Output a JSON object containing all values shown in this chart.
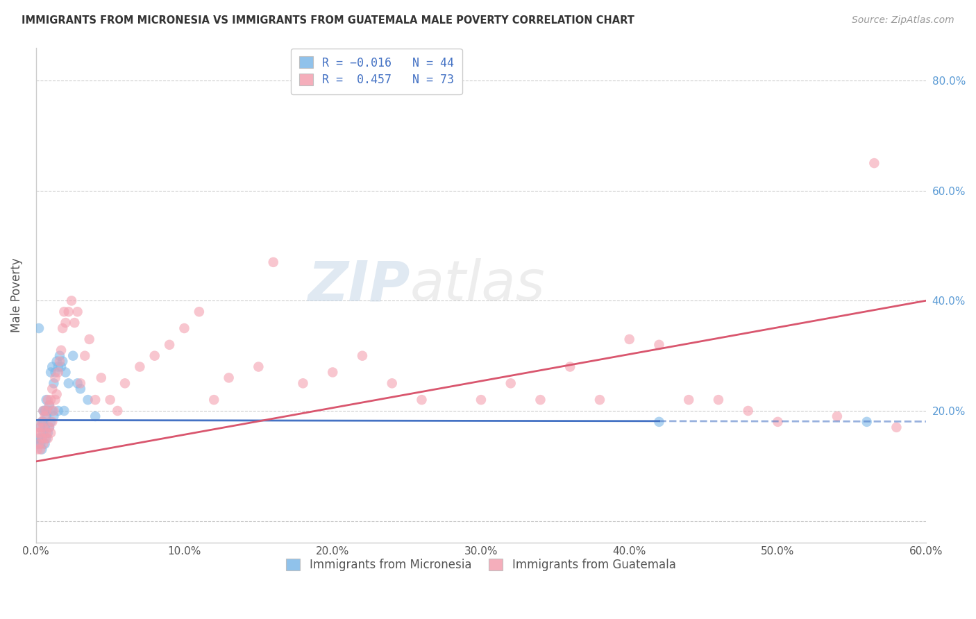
{
  "title": "IMMIGRANTS FROM MICRONESIA VS IMMIGRANTS FROM GUATEMALA MALE POVERTY CORRELATION CHART",
  "source": "Source: ZipAtlas.com",
  "ylabel_label": "Male Poverty",
  "xlim": [
    0.0,
    0.6
  ],
  "ylim": [
    -0.04,
    0.86
  ],
  "watermark": "ZIPatlas",
  "legend_r1": "R = -0.016",
  "legend_n1": "N = 44",
  "legend_r2": "R =  0.457",
  "legend_n2": "N = 73",
  "blue_color": "#7db8e8",
  "pink_color": "#f4a0b0",
  "line_blue": "#4472c4",
  "line_pink": "#d9566e",
  "blue_line_solid_end": 0.42,
  "blue_intercept": 0.183,
  "blue_slope": -0.004,
  "pink_intercept": 0.108,
  "pink_slope": 0.487,
  "micro_x": [
    0.001,
    0.002,
    0.002,
    0.003,
    0.003,
    0.004,
    0.004,
    0.004,
    0.005,
    0.005,
    0.005,
    0.006,
    0.006,
    0.006,
    0.007,
    0.007,
    0.007,
    0.008,
    0.008,
    0.009,
    0.009,
    0.01,
    0.01,
    0.011,
    0.011,
    0.012,
    0.012,
    0.013,
    0.014,
    0.015,
    0.015,
    0.016,
    0.017,
    0.018,
    0.019,
    0.02,
    0.022,
    0.025,
    0.028,
    0.03,
    0.035,
    0.04,
    0.42,
    0.56
  ],
  "micro_y": [
    0.14,
    0.35,
    0.15,
    0.14,
    0.17,
    0.15,
    0.18,
    0.13,
    0.16,
    0.18,
    0.2,
    0.14,
    0.17,
    0.2,
    0.15,
    0.19,
    0.22,
    0.16,
    0.2,
    0.17,
    0.21,
    0.18,
    0.27,
    0.2,
    0.28,
    0.19,
    0.25,
    0.27,
    0.29,
    0.2,
    0.28,
    0.3,
    0.28,
    0.29,
    0.2,
    0.27,
    0.25,
    0.3,
    0.25,
    0.24,
    0.22,
    0.19,
    0.18,
    0.18
  ],
  "guate_x": [
    0.001,
    0.001,
    0.002,
    0.002,
    0.003,
    0.003,
    0.004,
    0.004,
    0.005,
    0.005,
    0.005,
    0.006,
    0.006,
    0.007,
    0.007,
    0.008,
    0.008,
    0.009,
    0.009,
    0.01,
    0.01,
    0.011,
    0.011,
    0.012,
    0.013,
    0.013,
    0.014,
    0.015,
    0.016,
    0.017,
    0.018,
    0.019,
    0.02,
    0.022,
    0.024,
    0.026,
    0.028,
    0.03,
    0.033,
    0.036,
    0.04,
    0.044,
    0.05,
    0.055,
    0.06,
    0.07,
    0.08,
    0.09,
    0.1,
    0.11,
    0.12,
    0.13,
    0.15,
    0.16,
    0.18,
    0.2,
    0.22,
    0.24,
    0.26,
    0.3,
    0.32,
    0.34,
    0.36,
    0.38,
    0.4,
    0.42,
    0.44,
    0.46,
    0.48,
    0.5,
    0.54,
    0.565,
    0.58
  ],
  "guate_y": [
    0.13,
    0.16,
    0.14,
    0.17,
    0.13,
    0.16,
    0.15,
    0.18,
    0.14,
    0.17,
    0.2,
    0.15,
    0.19,
    0.16,
    0.2,
    0.15,
    0.22,
    0.17,
    0.21,
    0.16,
    0.22,
    0.18,
    0.24,
    0.2,
    0.22,
    0.26,
    0.23,
    0.27,
    0.29,
    0.31,
    0.35,
    0.38,
    0.36,
    0.38,
    0.4,
    0.36,
    0.38,
    0.25,
    0.3,
    0.33,
    0.22,
    0.26,
    0.22,
    0.2,
    0.25,
    0.28,
    0.3,
    0.32,
    0.35,
    0.38,
    0.22,
    0.26,
    0.28,
    0.47,
    0.25,
    0.27,
    0.3,
    0.25,
    0.22,
    0.22,
    0.25,
    0.22,
    0.28,
    0.22,
    0.33,
    0.32,
    0.22,
    0.22,
    0.2,
    0.18,
    0.19,
    0.65,
    0.17
  ]
}
